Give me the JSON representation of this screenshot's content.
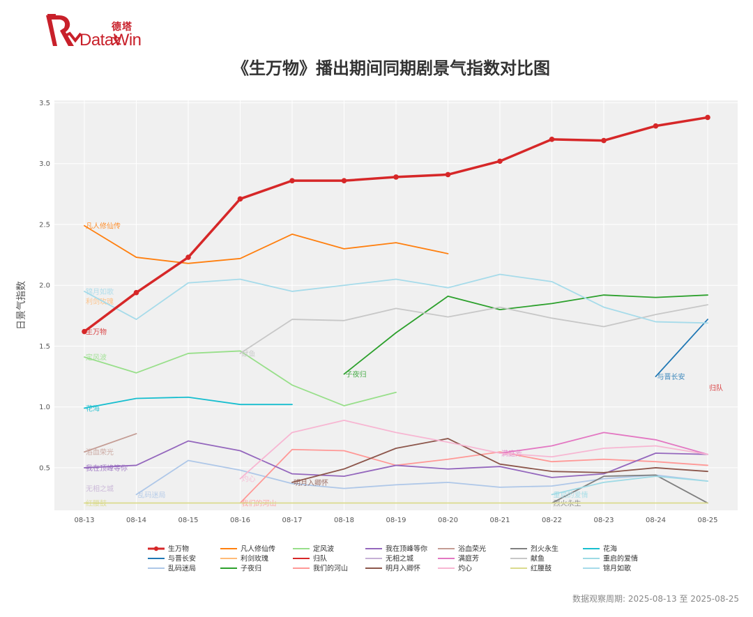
{
  "logo": {
    "brand_cn": "德塔文",
    "brand_en": "DataWin"
  },
  "footnote": "数据观察周期: 2025-08-13 至 2025-08-25",
  "chart_data": {
    "type": "line",
    "title": "《生万物》播出期间同期剧景气指数对比图",
    "xlabel": "",
    "ylabel": "日景气指数",
    "x": [
      "08-13",
      "08-14",
      "08-15",
      "08-16",
      "08-17",
      "08-18",
      "08-19",
      "08-20",
      "08-21",
      "08-22",
      "08-23",
      "08-24",
      "08-25"
    ],
    "yticks": [
      0.5,
      1.0,
      1.5,
      2.0,
      2.5,
      3.0,
      3.5
    ],
    "ylim": [
      0.15,
      3.52
    ],
    "grid": true,
    "legend_position": "bottom",
    "series": [
      {
        "name": "生万物",
        "color": "#d62728",
        "width": 3.5,
        "markers": true,
        "label_at": 0,
        "values": [
          1.62,
          1.94,
          2.23,
          2.71,
          2.86,
          2.86,
          2.89,
          2.91,
          3.02,
          3.2,
          3.19,
          3.31,
          3.38
        ]
      },
      {
        "name": "与晋长安",
        "color": "#1f77b4",
        "width": 1.8,
        "label_at": 11,
        "values": [
          null,
          null,
          null,
          null,
          null,
          null,
          null,
          null,
          null,
          null,
          null,
          1.25,
          1.72
        ]
      },
      {
        "name": "乱码迷局",
        "color": "#aec7e8",
        "width": 1.8,
        "label_at": 1,
        "values": [
          null,
          0.28,
          0.56,
          0.48,
          0.37,
          0.33,
          0.36,
          0.38,
          0.34,
          0.35,
          0.41,
          0.44,
          0.39
        ]
      },
      {
        "name": "凡人修仙传",
        "color": "#ff7f0e",
        "width": 1.8,
        "label_at": 0,
        "values": [
          2.49,
          2.23,
          2.18,
          2.22,
          2.42,
          2.3,
          2.35,
          2.26,
          null,
          null,
          null,
          null,
          null
        ]
      },
      {
        "name": "利剑玫瑰",
        "color": "#ffbb78",
        "width": 1.8,
        "label_at": 0,
        "values": [
          1.87,
          null,
          null,
          null,
          null,
          null,
          null,
          null,
          null,
          null,
          null,
          null,
          null
        ]
      },
      {
        "name": "子夜归",
        "color": "#2ca02c",
        "width": 1.8,
        "label_at": 5,
        "values": [
          null,
          null,
          null,
          null,
          null,
          1.27,
          1.61,
          1.91,
          1.8,
          1.85,
          1.92,
          1.9,
          1.92
        ]
      },
      {
        "name": "定风波",
        "color": "#98df8a",
        "width": 1.8,
        "label_at": 0,
        "values": [
          1.41,
          1.28,
          1.44,
          1.46,
          1.18,
          1.01,
          1.12,
          null,
          null,
          null,
          null,
          null,
          null
        ]
      },
      {
        "name": "归队",
        "color": "#d62728",
        "width": 1.8,
        "label_at": 12,
        "values": [
          null,
          null,
          null,
          null,
          null,
          null,
          null,
          null,
          null,
          null,
          null,
          null,
          1.16
        ]
      },
      {
        "name": "我们的河山",
        "color": "#ff9896",
        "width": 1.8,
        "label_at": 3,
        "values": [
          null,
          null,
          null,
          0.21,
          0.65,
          0.64,
          0.52,
          0.57,
          0.63,
          0.55,
          0.57,
          0.55,
          0.52
        ]
      },
      {
        "name": "我在顶峰等你",
        "color": "#9467bd",
        "width": 1.8,
        "label_at": 0,
        "values": [
          0.5,
          0.52,
          0.72,
          0.64,
          0.45,
          0.43,
          0.52,
          0.49,
          0.51,
          0.42,
          0.45,
          0.62,
          0.61
        ]
      },
      {
        "name": "无相之城",
        "color": "#c5b0d5",
        "width": 1.8,
        "label_at": 0,
        "values": [
          0.33,
          null,
          null,
          null,
          null,
          null,
          null,
          null,
          null,
          null,
          null,
          null,
          null
        ]
      },
      {
        "name": "明月入卿怀",
        "color": "#8c564b",
        "width": 1.8,
        "label_at": 4,
        "values": [
          null,
          null,
          null,
          null,
          0.38,
          0.49,
          0.66,
          0.74,
          0.53,
          0.47,
          0.46,
          0.5,
          0.47
        ]
      },
      {
        "name": "浴血荣光",
        "color": "#c49c94",
        "width": 1.8,
        "label_at": 0,
        "values": [
          0.63,
          0.78,
          null,
          null,
          null,
          null,
          null,
          null,
          null,
          null,
          null,
          null,
          null
        ]
      },
      {
        "name": "满庭芳",
        "color": "#e377c2",
        "width": 1.8,
        "label_at": 8,
        "values": [
          null,
          null,
          null,
          null,
          null,
          null,
          null,
          null,
          0.62,
          0.68,
          0.79,
          0.73,
          0.61
        ]
      },
      {
        "name": "灼心",
        "color": "#f7b6d2",
        "width": 1.8,
        "label_at": 3,
        "values": [
          null,
          null,
          null,
          0.41,
          0.79,
          0.89,
          0.79,
          0.71,
          0.62,
          0.59,
          0.66,
          0.68,
          0.61
        ]
      },
      {
        "name": "烈火永生",
        "color": "#7f7f7f",
        "width": 1.8,
        "label_at": 9,
        "values": [
          null,
          null,
          null,
          null,
          null,
          null,
          null,
          null,
          null,
          0.21,
          0.43,
          0.44,
          0.21
        ]
      },
      {
        "name": "献鱼",
        "color": "#c7c7c7",
        "width": 1.8,
        "label_at": 3,
        "values": [
          null,
          null,
          null,
          1.44,
          1.72,
          1.71,
          1.81,
          1.74,
          1.82,
          1.73,
          1.66,
          1.76,
          1.84
        ]
      },
      {
        "name": "红腰鼓",
        "color": "#dbdb8d",
        "width": 1.8,
        "label_at": 0,
        "values": [
          0.21,
          0.21,
          0.21,
          0.21,
          0.21,
          0.21,
          0.21,
          0.21,
          0.21,
          0.21,
          0.21,
          0.21,
          0.21
        ]
      },
      {
        "name": "花海",
        "color": "#17becf",
        "width": 1.8,
        "label_at": 0,
        "values": [
          0.99,
          1.07,
          1.08,
          1.02,
          1.02,
          null,
          null,
          null,
          null,
          null,
          null,
          null,
          null
        ]
      },
      {
        "name": "重启的爱情",
        "color": "#9edae5",
        "width": 1.8,
        "label_at": 9,
        "values": [
          null,
          null,
          null,
          null,
          null,
          null,
          null,
          null,
          null,
          0.28,
          0.38,
          0.43,
          0.39
        ]
      },
      {
        "name": "锦月如歌",
        "color": "#a6dbea",
        "width": 1.8,
        "label_at": 0,
        "values": [
          1.95,
          1.72,
          2.02,
          2.05,
          1.95,
          2.0,
          2.05,
          1.98,
          2.09,
          2.03,
          1.82,
          1.7,
          1.69
        ]
      }
    ]
  }
}
